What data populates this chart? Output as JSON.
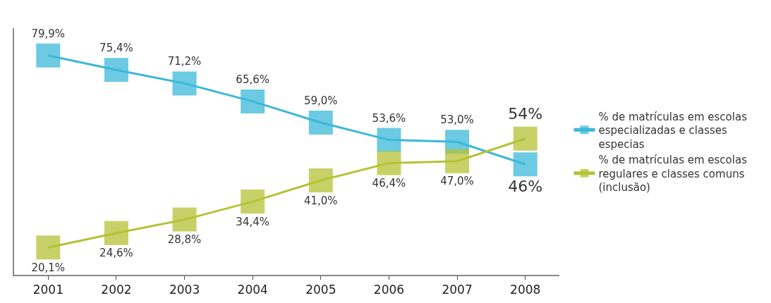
{
  "chart_data": {
    "type": "line",
    "categories": [
      "2001",
      "2002",
      "2003",
      "2004",
      "2005",
      "2006",
      "2007",
      "2008"
    ],
    "series": [
      {
        "name": "% de matrículas em escolas especializadas e classes especias",
        "color": "#3bb8d8",
        "values": [
          79.9,
          75.4,
          71.2,
          65.6,
          59.0,
          53.6,
          53.0,
          46
        ],
        "value_labels": [
          "79,9%",
          "75,4%",
          "71,2%",
          "65,6%",
          "59,0%",
          "53,6%",
          "53,0%",
          "46%"
        ]
      },
      {
        "name": "% de matrículas em escolas regulares e classes comuns (inclusão)",
        "color": "#b5c234",
        "values": [
          20.1,
          24.6,
          28.8,
          34.4,
          41.0,
          46.4,
          47.0,
          54
        ],
        "value_labels": [
          "20,1%",
          "24,6%",
          "28,8%",
          "34,4%",
          "41,0%",
          "46,4%",
          "47,0%",
          "54%"
        ]
      }
    ],
    "marker": "square",
    "line_style": "solid",
    "legend": "right",
    "grid": false
  }
}
